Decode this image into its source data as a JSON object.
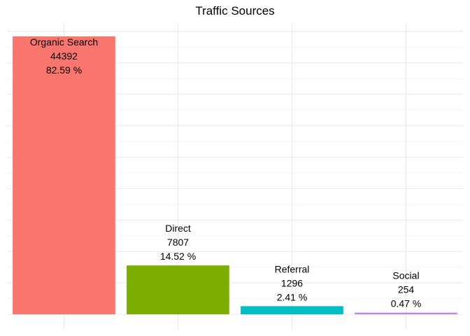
{
  "chart_data": {
    "type": "bar",
    "title": "Traffic Sources",
    "xlabel": "",
    "ylabel": "",
    "categories": [
      "Organic Search",
      "Direct",
      "Referral",
      "Social"
    ],
    "values": [
      44392,
      7807,
      1296,
      254
    ],
    "percent_labels": [
      "82.59 %",
      "14.52 %",
      "2.41 %",
      "0.47 %"
    ],
    "colors": [
      "#F8766D",
      "#7CAE00",
      "#00BFC4",
      "#C77CFF"
    ],
    "ylim": [
      0,
      46500
    ],
    "grid": true,
    "legend": "none",
    "axis_tick_labels_shown": false
  }
}
